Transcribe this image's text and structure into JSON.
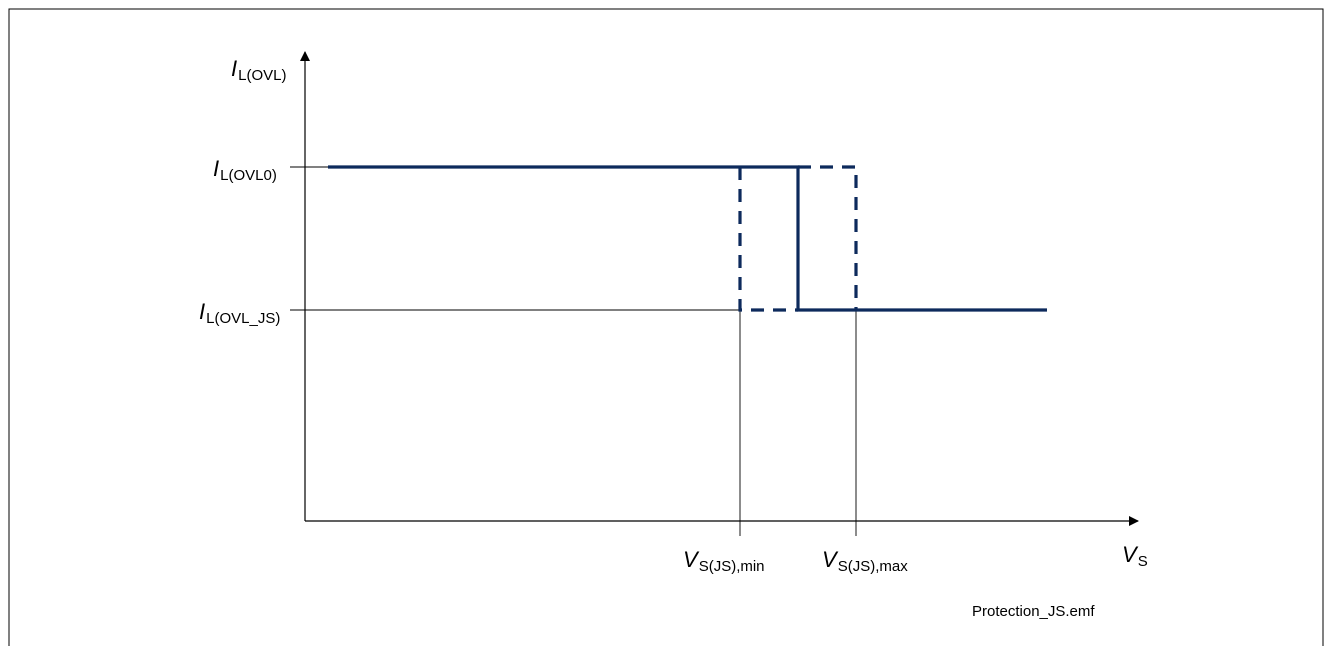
{
  "figure": {
    "y_axis": {
      "main": "I",
      "sub": "L(OVL)"
    },
    "x_axis": {
      "main": "V",
      "sub": "S"
    },
    "y_levels": [
      {
        "main": "I",
        "sub": "L(OVL0)"
      },
      {
        "main": "I",
        "sub": "L(OVL_JS)"
      }
    ],
    "x_marks": [
      {
        "main": "V",
        "sub": "S(JS),min"
      },
      {
        "main": "V",
        "sub": "S(JS),max"
      }
    ],
    "caption": "Protection_JS.emf",
    "colors": {
      "curve": "#0d2a5c",
      "axis": "#000000",
      "frame": "#000000"
    }
  }
}
